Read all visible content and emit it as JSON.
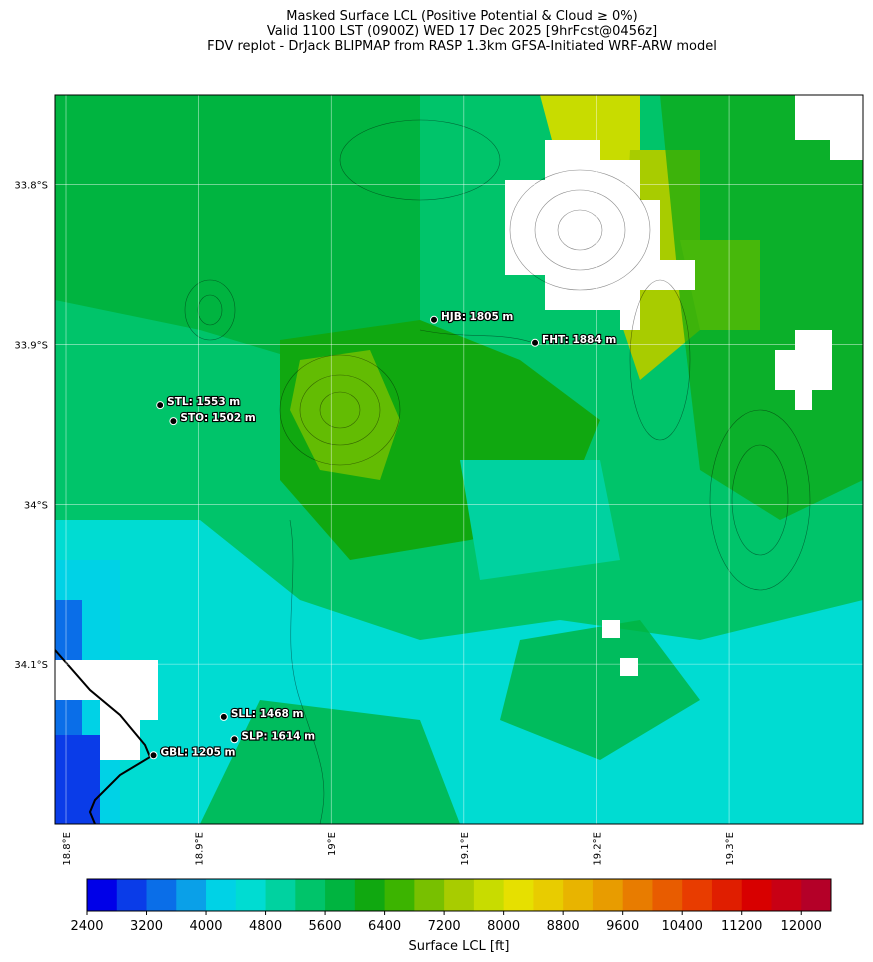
{
  "chart_data": {
    "type": "map",
    "title": [
      "Masked Surface LCL (Positive Potential & Cloud ≥ 0%)",
      "Valid 1100 LST (0900Z) WED 17 Dec 2025 [9hrFcst@0456z]",
      "FDV replot - DrJack BLIPMAP from RASP 1.3km GFSA-Initiated WRF-ARW model"
    ],
    "xlim": [
      18.7917,
      19.401
    ],
    "ylim": [
      -34.2,
      -33.744
    ],
    "xticks": [
      {
        "value": 18.8,
        "label": "18.8°E"
      },
      {
        "value": 18.9,
        "label": "18.9°E"
      },
      {
        "value": 19.0,
        "label": "19°E"
      },
      {
        "value": 19.1,
        "label": "19.1°E"
      },
      {
        "value": 19.2,
        "label": "19.2°E"
      },
      {
        "value": 19.3,
        "label": "19.3°E"
      }
    ],
    "yticks": [
      {
        "value": -33.8,
        "label": "33.8°S"
      },
      {
        "value": -33.9,
        "label": "33.9°S"
      },
      {
        "value": -34.0,
        "label": "34°S"
      },
      {
        "value": -34.1,
        "label": "34.1°S"
      }
    ],
    "grid": true,
    "stations": [
      {
        "label": "HJB: 1805 m",
        "lon": 19.0775,
        "lat": -33.8846
      },
      {
        "label": "FHT: 1884 m",
        "lon": 19.1537,
        "lat": -33.899
      },
      {
        "label": "STL: 1553 m",
        "lon": 18.871,
        "lat": -33.938
      },
      {
        "label": "STO: 1502 m",
        "lon": 18.881,
        "lat": -33.948
      },
      {
        "label": "SLL: 1468 m",
        "lon": 18.919,
        "lat": -34.133
      },
      {
        "label": "SLP: 1614 m",
        "lon": 18.927,
        "lat": -34.147
      },
      {
        "label": "GBL: 1205 m",
        "lon": 18.866,
        "lat": -34.157
      }
    ],
    "colorbar": {
      "label": "Surface LCL [ft]",
      "clim": [
        2400,
        12400
      ],
      "ticks": [
        2400,
        3200,
        4000,
        4800,
        5600,
        6400,
        7200,
        8000,
        8800,
        9600,
        10400,
        11200,
        12000
      ],
      "colors": [
        "#0000e8",
        "#0a3ce8",
        "#0a6ee8",
        "#0aa0e8",
        "#00d2e6",
        "#00dcd2",
        "#00d2a0",
        "#00c46a",
        "#00b440",
        "#10a810",
        "#3cb400",
        "#78c000",
        "#a8cc00",
        "#c8dc00",
        "#e6e000",
        "#e8cc00",
        "#e8b400",
        "#e89c00",
        "#e87c00",
        "#e85c00",
        "#e83c00",
        "#e01e00",
        "#d80000",
        "#c80014",
        "#b40028"
      ]
    }
  }
}
